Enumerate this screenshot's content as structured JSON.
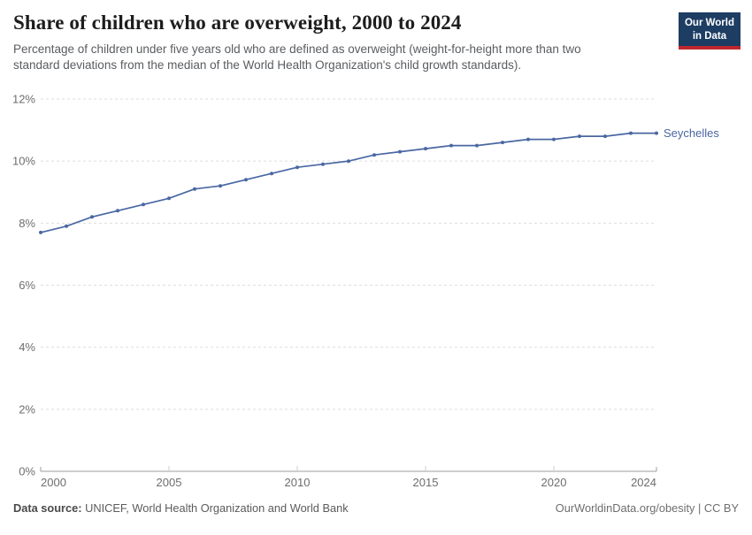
{
  "header": {
    "title": "Share of children who are overweight, 2000 to 2024",
    "subtitle": "Percentage of children under five years old who are defined as overweight (weight-for-height more than two standard deviations from the median of the World Health Organization's child growth standards)."
  },
  "logo": {
    "line1": "Our World",
    "line2": "in Data",
    "bg_color": "#1d3d63",
    "bar_color": "#c0262d"
  },
  "footer": {
    "source_label": "Data source:",
    "source_text": " UNICEF, World Health Organization and World Bank",
    "right_text": "OurWorldinData.org/obesity | CC BY"
  },
  "chart_data": {
    "type": "line",
    "title": "Share of children who are overweight, 2000 to 2024",
    "entity": "Seychelles",
    "unit": "%",
    "line_color": "#4a67a3",
    "grid": true,
    "legend_position": "right-of-line-end",
    "x": [
      2000,
      2001,
      2002,
      2003,
      2004,
      2005,
      2006,
      2007,
      2008,
      2009,
      2010,
      2011,
      2012,
      2013,
      2014,
      2015,
      2016,
      2017,
      2018,
      2019,
      2020,
      2021,
      2022,
      2023,
      2024
    ],
    "values": [
      7.7,
      7.9,
      8.2,
      8.4,
      8.6,
      8.8,
      9.1,
      9.2,
      9.4,
      9.6,
      9.8,
      9.9,
      10.0,
      10.2,
      10.3,
      10.4,
      10.5,
      10.5,
      10.6,
      10.7,
      10.7,
      10.8,
      10.8,
      10.9,
      10.9
    ],
    "xlabel": "",
    "ylabel": "",
    "ylim": [
      0,
      12
    ],
    "yticks": [
      0,
      2,
      4,
      6,
      8,
      10,
      12
    ],
    "xticks": [
      2000,
      2005,
      2010,
      2015,
      2020,
      2024
    ],
    "colors": {
      "gridline": "#dddddd",
      "axis": "#9e9e9e",
      "tick": "#cccccc",
      "tick_label": "#6e6e6e"
    }
  }
}
